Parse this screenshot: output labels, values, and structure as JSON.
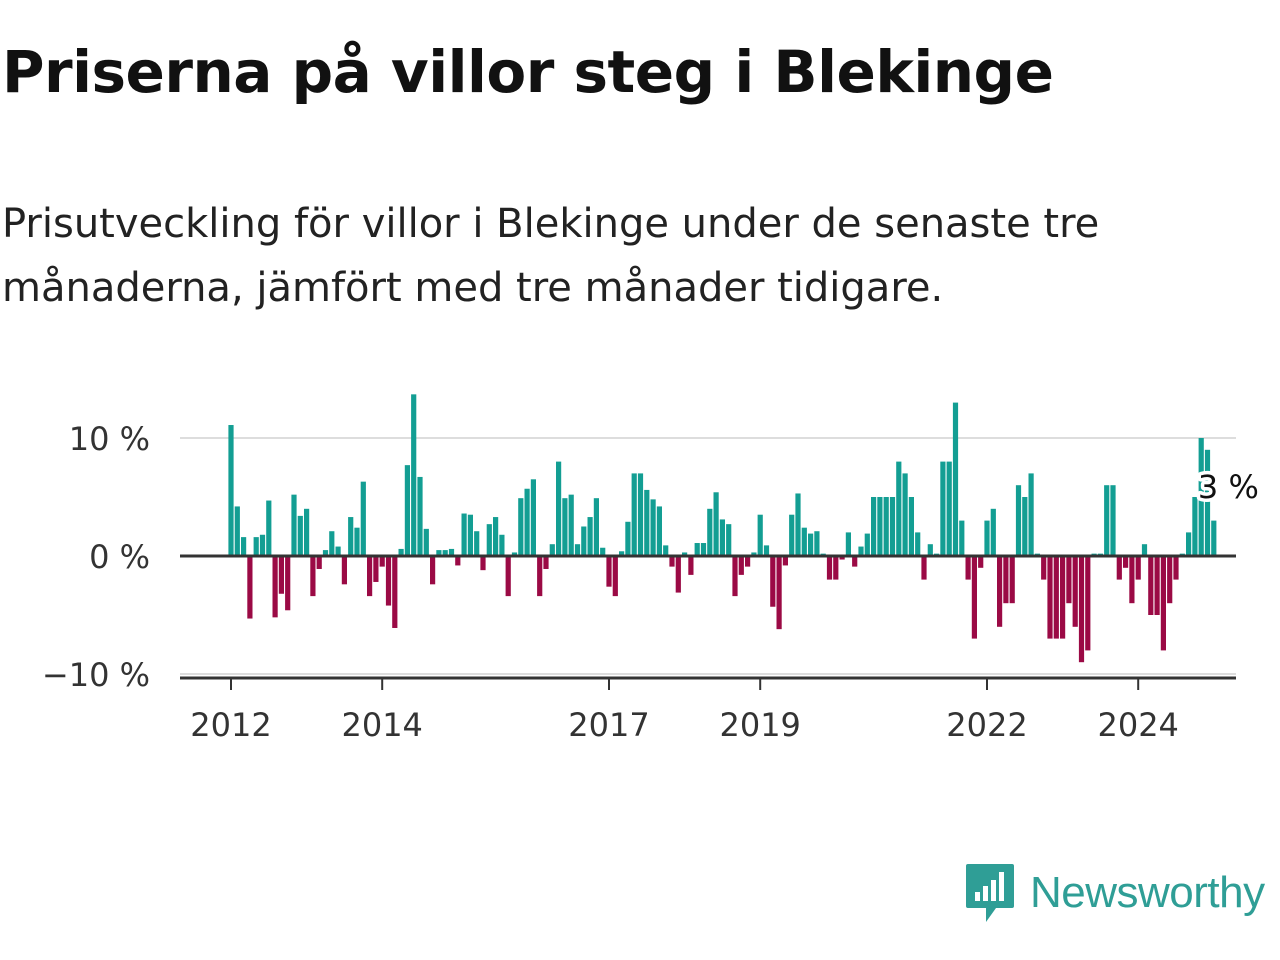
{
  "title": "Priserna på villor steg i Blekinge",
  "subtitle": "Prisutveckling för villor i Blekinge under de senaste tre månaderna, jämfört med tre månader tidigare.",
  "brand": {
    "name": "Newsworthy",
    "color": "#2f9e96",
    "icon": "newsworthy-logo-icon"
  },
  "colors": {
    "positive": "#139e93",
    "negative": "#9b0a45",
    "grid": "#dddddd",
    "axis": "#333333"
  },
  "chart_data": {
    "type": "bar",
    "title": "Priserna på villor steg i Blekinge",
    "xlabel": "",
    "ylabel": "",
    "ylim": [
      -10,
      13.8
    ],
    "yticks": [
      {
        "value": 10,
        "label": "10 %"
      },
      {
        "value": 0,
        "label": "0 %"
      },
      {
        "value": -10,
        "label": "−10 %"
      }
    ],
    "xticks": [
      {
        "value": 2012,
        "label": "2012"
      },
      {
        "value": 2014,
        "label": "2014"
      },
      {
        "value": 2017,
        "label": "2017"
      },
      {
        "value": 2019,
        "label": "2019"
      },
      {
        "value": 2022,
        "label": "2022"
      },
      {
        "value": 2024,
        "label": "2024"
      }
    ],
    "start_year": 2012,
    "bars_per_year": 12,
    "grid": true,
    "annotation": {
      "label": "3 %",
      "index": 158
    },
    "values": [
      11.1,
      4.2,
      1.6,
      -5.3,
      1.6,
      1.8,
      4.7,
      -5.2,
      -3.2,
      -4.6,
      5.2,
      3.4,
      4.0,
      -3.4,
      -1.1,
      0.5,
      2.1,
      0.8,
      -2.4,
      3.3,
      2.4,
      6.3,
      -3.4,
      -2.2,
      -0.9,
      -4.2,
      -6.1,
      0.6,
      7.7,
      13.7,
      6.7,
      2.3,
      -2.4,
      0.5,
      0.5,
      0.6,
      -0.8,
      3.6,
      3.5,
      2.1,
      -1.2,
      2.7,
      3.3,
      1.8,
      -3.4,
      0.3,
      4.9,
      5.7,
      6.5,
      -3.4,
      -1.1,
      1.0,
      8.0,
      4.9,
      5.2,
      1.0,
      2.5,
      3.3,
      4.9,
      0.7,
      -2.6,
      -3.4,
      0.4,
      2.9,
      7.0,
      7.0,
      5.6,
      4.8,
      4.2,
      0.9,
      -0.9,
      -3.1,
      0.3,
      -1.6,
      1.1,
      1.1,
      4.0,
      5.4,
      3.1,
      2.7,
      -3.4,
      -1.6,
      -0.9,
      0.3,
      3.5,
      0.9,
      -4.3,
      -6.2,
      -0.8,
      3.5,
      5.3,
      2.4,
      1.9,
      2.1,
      0.2,
      -2.0,
      -2.0,
      -0.3,
      2.0,
      -0.9,
      0.8,
      1.9,
      5.0,
      5.0,
      5.0,
      5.0,
      8.0,
      7.0,
      5.0,
      2.0,
      -2.0,
      1.0,
      0.2,
      8.0,
      8.0,
      13.0,
      3.0,
      -2.0,
      -7.0,
      -1.0,
      3.0,
      4.0,
      -6.0,
      -4.0,
      -4.0,
      6.0,
      5.0,
      7.0,
      0.2,
      -2.0,
      -7.0,
      -7.0,
      -7.0,
      -4.0,
      -6.0,
      -9.0,
      -8.0,
      0.2,
      0.2,
      6.0,
      6.0,
      -2.0,
      -1.0,
      -4.0,
      -2.0,
      1.0,
      -5.0,
      -5.0,
      -8.0,
      -4.0,
      -2.0,
      0.2,
      2.0,
      5.0,
      10.0,
      9.0,
      3.0
    ]
  }
}
